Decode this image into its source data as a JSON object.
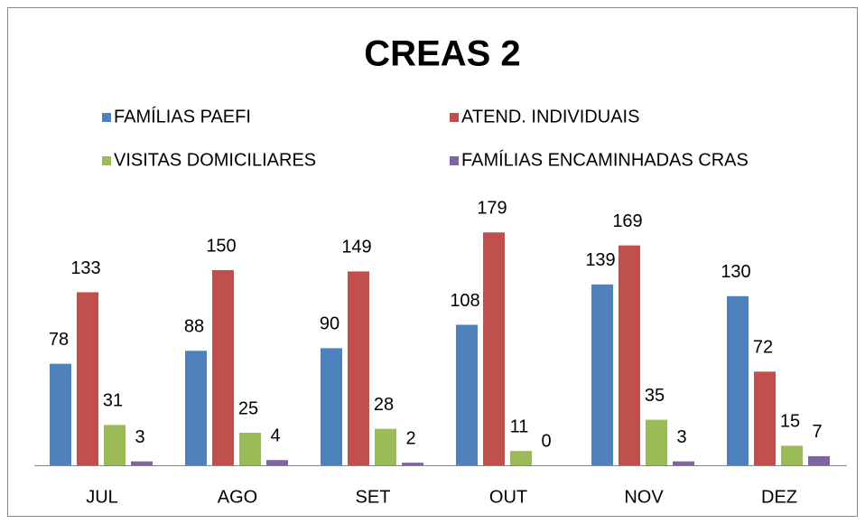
{
  "chart_data": {
    "type": "bar",
    "title": "CREAS 2",
    "categories": [
      "JUL",
      "AGO",
      "SET",
      "OUT",
      "NOV",
      "DEZ"
    ],
    "series": [
      {
        "name": "FAMÍLIAS PAEFI",
        "color": "#4f81bd",
        "values": [
          78,
          88,
          90,
          108,
          139,
          130
        ]
      },
      {
        "name": "ATEND. INDIVIDUAIS",
        "color": "#c0504d",
        "values": [
          133,
          150,
          149,
          179,
          169,
          72
        ]
      },
      {
        "name": "VISITAS DOMICILIARES",
        "color": "#9bbb59",
        "values": [
          31,
          25,
          28,
          11,
          35,
          15
        ]
      },
      {
        "name": "FAMÍLIAS ENCAMINHADAS CRAS",
        "color": "#8064a2",
        "values": [
          3,
          4,
          2,
          0,
          3,
          7
        ]
      }
    ]
  }
}
